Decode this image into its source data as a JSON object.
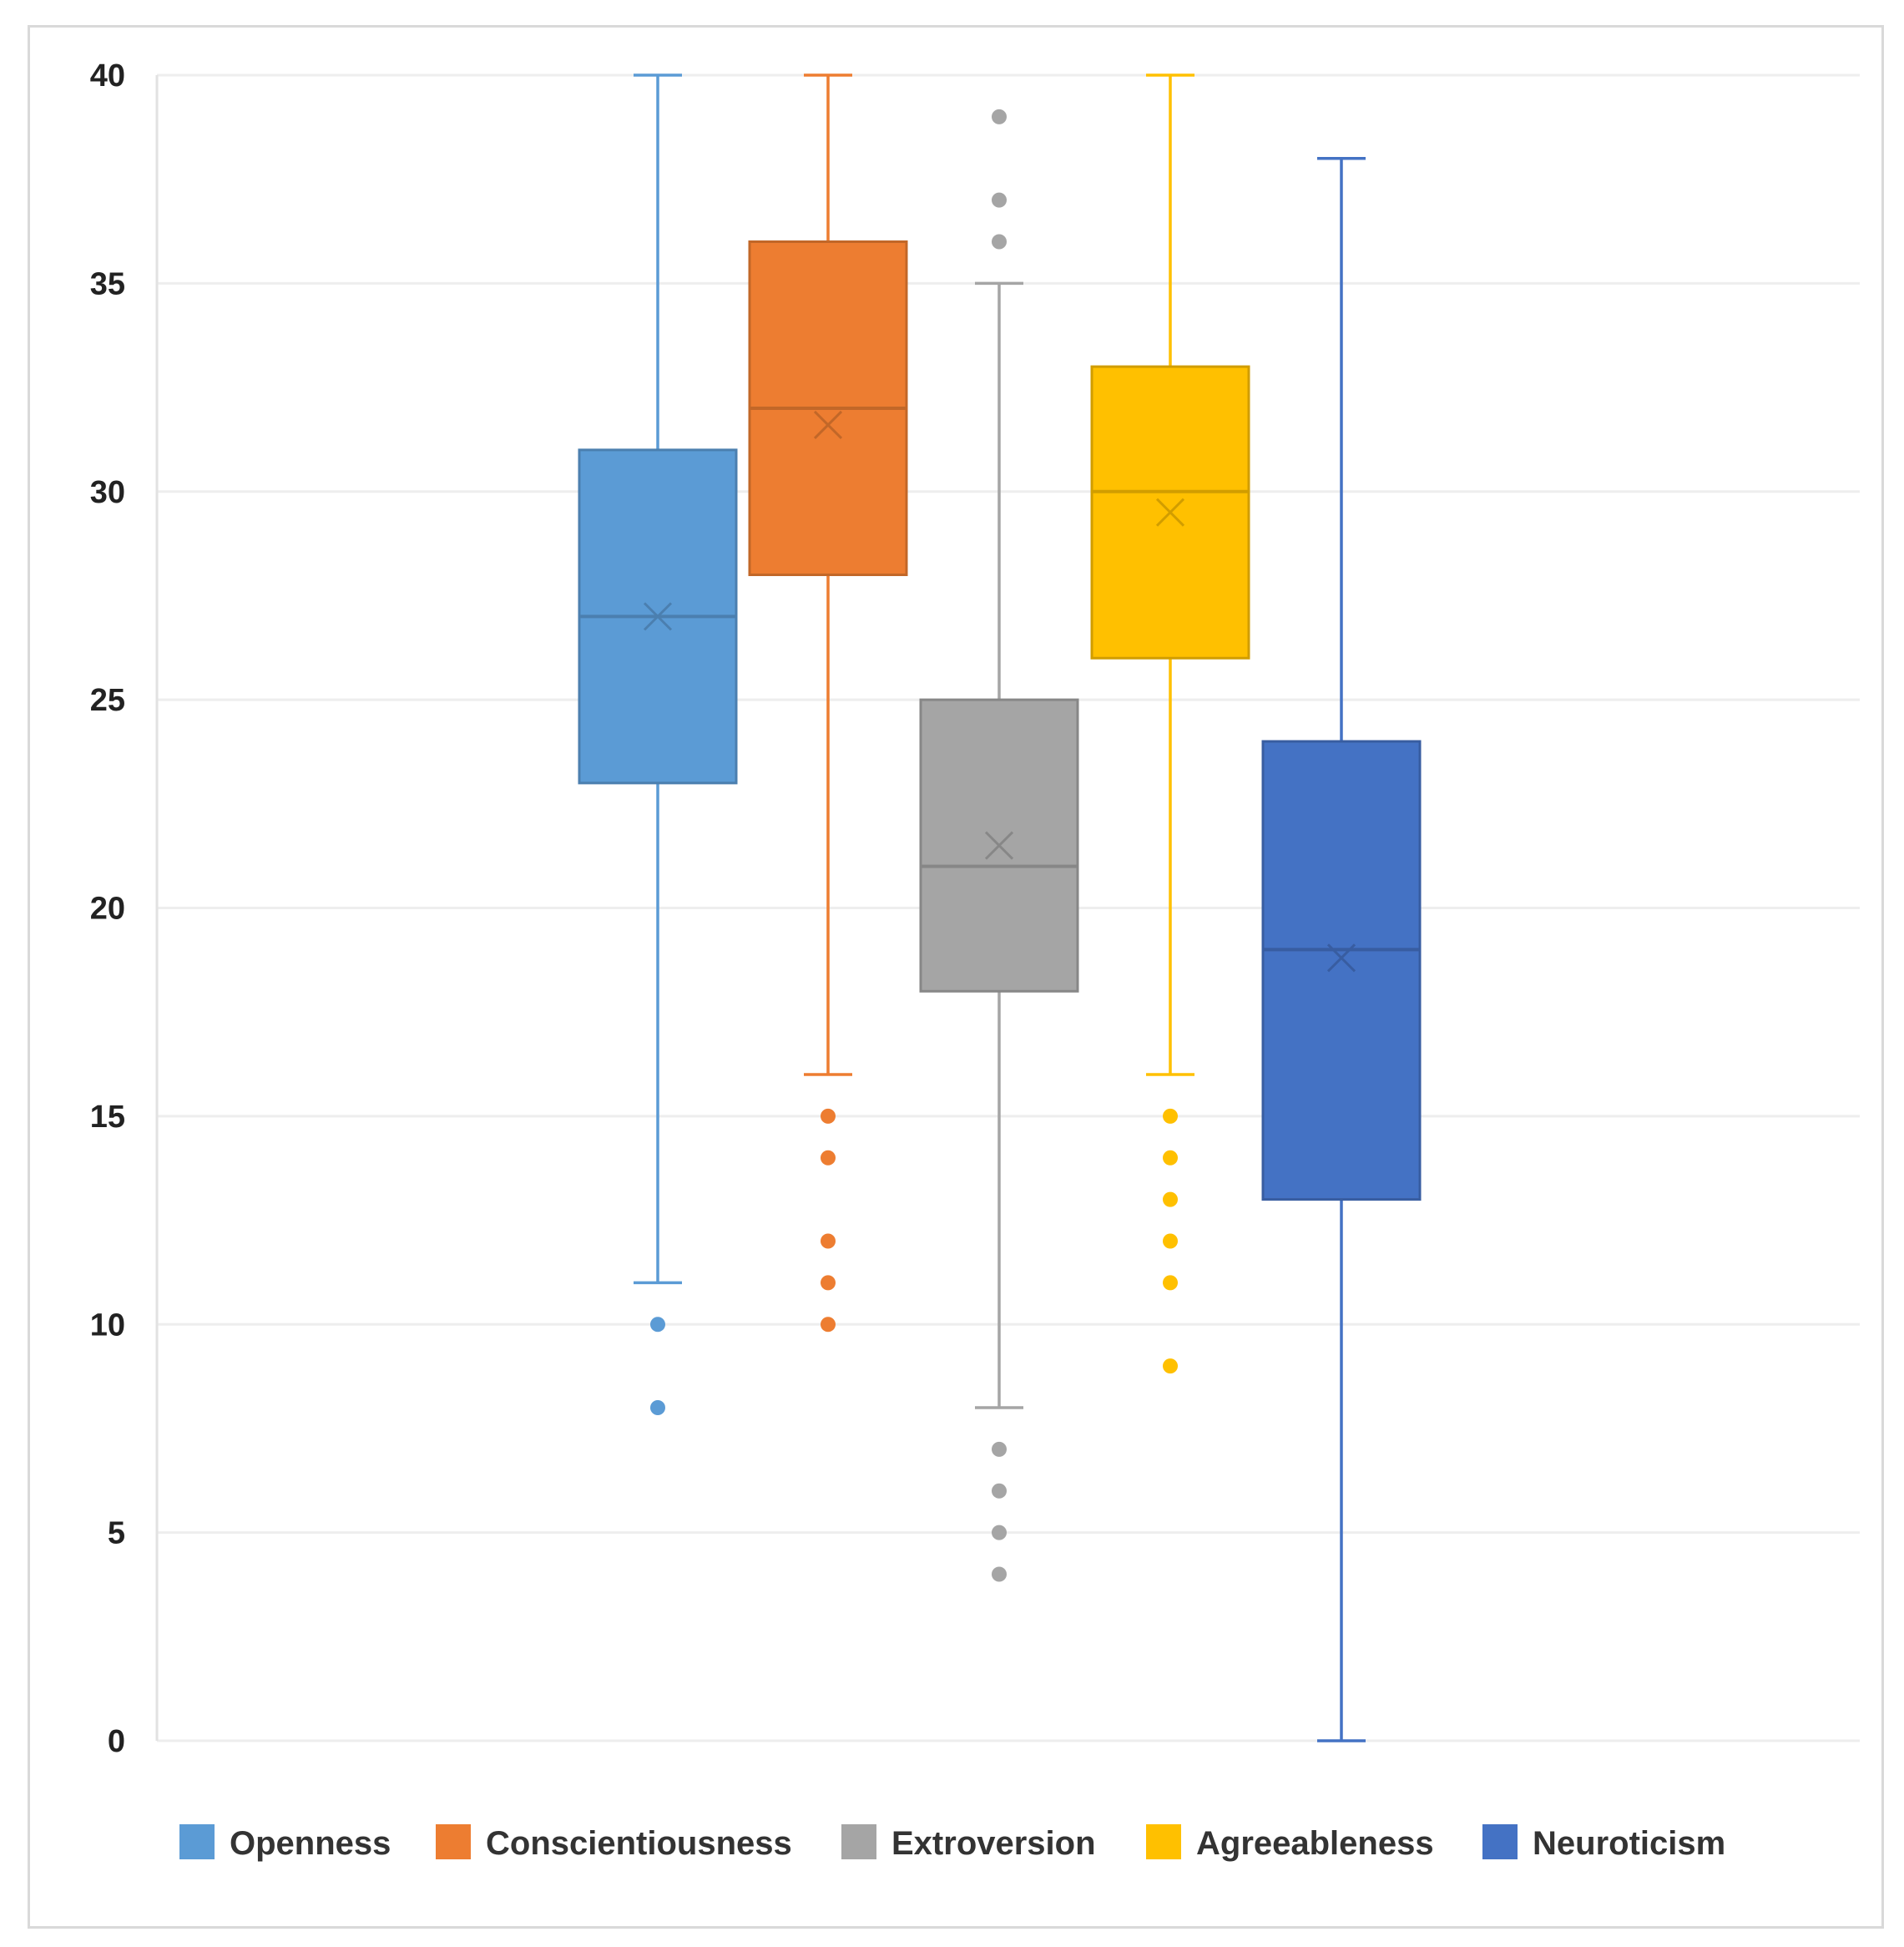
{
  "chart_data": {
    "type": "boxplot",
    "title": "",
    "xlabel": "",
    "ylabel": "",
    "ylim": [
      0,
      40
    ],
    "yticks": [
      0,
      5,
      10,
      15,
      20,
      25,
      30,
      35,
      40
    ],
    "grid": true,
    "legend_position": "bottom",
    "series": [
      {
        "name": "Openness",
        "color": "#5B9BD5",
        "whisker_low": 11,
        "q1": 23,
        "median": 27,
        "q3": 31,
        "whisker_high": 40,
        "mean": 27,
        "outliers": [
          10,
          8
        ]
      },
      {
        "name": "Conscientiousness",
        "color": "#ED7D31",
        "whisker_low": 16,
        "q1": 28,
        "median": 32,
        "q3": 36,
        "whisker_high": 40,
        "mean": 31.6,
        "outliers": [
          15,
          14,
          12,
          11,
          10
        ]
      },
      {
        "name": "Extroversion",
        "color": "#A5A5A5",
        "whisker_low": 8,
        "q1": 18,
        "median": 21,
        "q3": 25,
        "whisker_high": 35,
        "mean": 21.5,
        "outliers": [
          39,
          37,
          36,
          7,
          6,
          5,
          4
        ]
      },
      {
        "name": "Agreeableness",
        "color": "#FFC000",
        "whisker_low": 16,
        "q1": 26,
        "median": 30,
        "q3": 33,
        "whisker_high": 40,
        "mean": 29.5,
        "outliers": [
          15,
          14,
          13,
          12,
          11,
          9
        ]
      },
      {
        "name": "Neuroticism",
        "color": "#4472C4",
        "whisker_low": 0,
        "q1": 13,
        "median": 19,
        "q3": 24,
        "whisker_high": 38,
        "mean": 18.8,
        "outliers": []
      }
    ]
  }
}
